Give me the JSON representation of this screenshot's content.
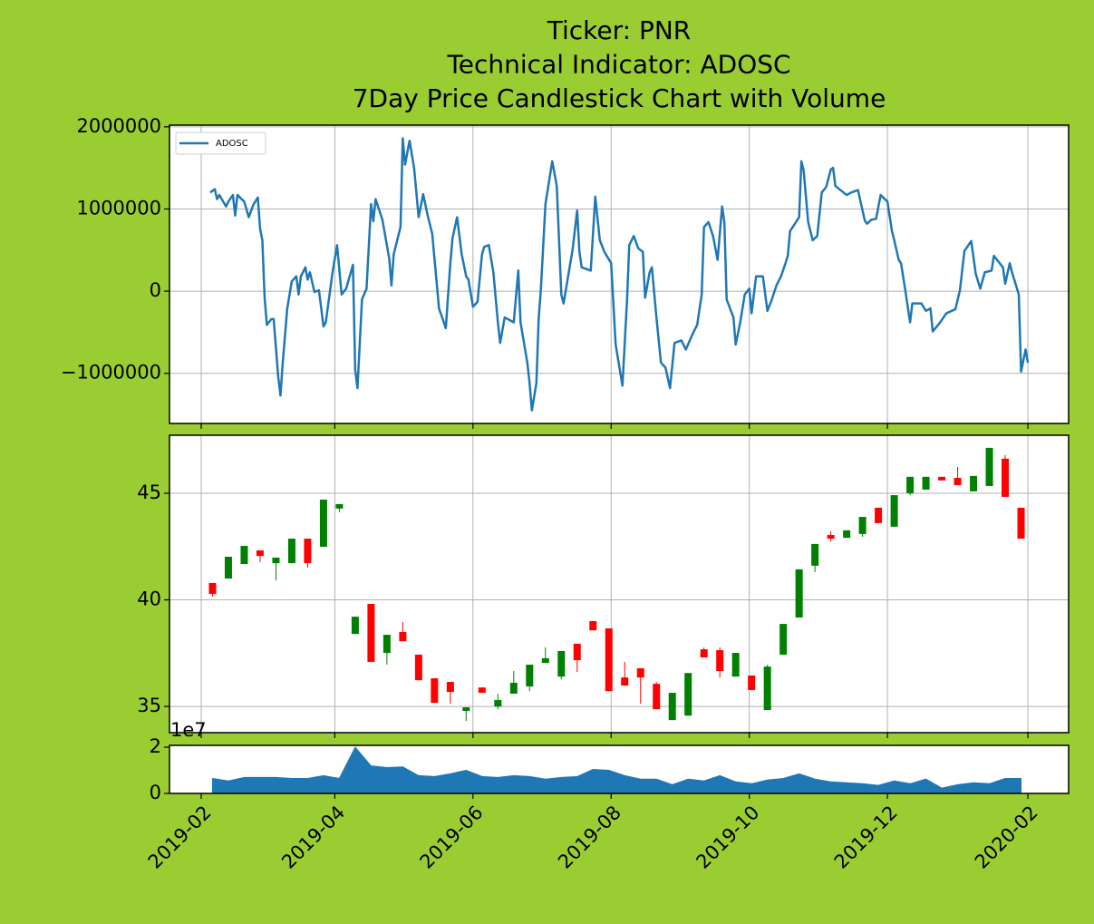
{
  "chart_data": [
    {
      "type": "line",
      "title": [
        "Ticker: PNR",
        "Technical Indicator: ADOSC",
        "7Day Price Candlestick Chart with Volume"
      ],
      "ylim": [
        -1610000,
        2020000
      ],
      "yticks": [
        {
          "value": -1000000,
          "label": "−1000000"
        },
        0,
        1000000,
        2000000
      ],
      "grid": true,
      "legend": "upper left",
      "series": [
        {
          "name": "ADOSC",
          "color": "#1f77b4",
          "x": [
            "2019-02-05",
            "2019-02-07",
            "2019-02-08",
            "2019-02-09",
            "2019-02-12",
            "2019-02-13",
            "2019-02-15",
            "2019-02-16",
            "2019-02-17",
            "2019-02-20",
            "2019-02-22",
            "2019-02-24",
            "2019-02-26",
            "2019-02-27",
            "2019-02-28",
            "2019-03-01",
            "2019-03-02",
            "2019-03-04",
            "2019-03-05",
            "2019-03-07",
            "2019-03-08",
            "2019-03-09",
            "2019-03-11",
            "2019-03-13",
            "2019-03-15",
            "2019-03-16",
            "2019-03-17",
            "2019-03-19",
            "2019-03-20",
            "2019-03-21",
            "2019-03-23",
            "2019-03-25",
            "2019-03-27",
            "2019-03-28",
            "2019-03-31",
            "2019-04-02",
            "2019-04-04",
            "2019-04-06",
            "2019-04-09",
            "2019-04-10",
            "2019-04-11",
            "2019-04-13",
            "2019-04-15",
            "2019-04-17",
            "2019-04-18",
            "2019-04-19",
            "2019-04-22",
            "2019-04-25",
            "2019-04-26",
            "2019-04-27",
            "2019-04-30",
            "2019-05-01",
            "2019-05-02",
            "2019-05-04",
            "2019-05-06",
            "2019-05-08",
            "2019-05-10",
            "2019-05-12",
            "2019-05-14",
            "2019-05-17",
            "2019-05-20",
            "2019-05-22",
            "2019-05-23",
            "2019-05-25",
            "2019-05-27",
            "2019-05-29",
            "2019-05-30",
            "2019-06-01",
            "2019-06-03",
            "2019-06-05",
            "2019-06-06",
            "2019-06-08",
            "2019-06-10",
            "2019-06-12",
            "2019-06-13",
            "2019-06-15",
            "2019-06-19",
            "2019-06-21",
            "2019-06-22",
            "2019-06-25",
            "2019-06-26",
            "2019-06-27",
            "2019-06-29",
            "2019-06-30",
            "2019-07-01",
            "2019-07-03",
            "2019-07-06",
            "2019-07-08",
            "2019-07-10",
            "2019-07-11",
            "2019-07-13",
            "2019-07-15",
            "2019-07-17",
            "2019-07-18",
            "2019-07-19",
            "2019-07-23",
            "2019-07-25",
            "2019-07-27",
            "2019-07-29",
            "2019-08-01",
            "2019-08-03",
            "2019-08-06",
            "2019-08-08",
            "2019-08-09",
            "2019-08-11",
            "2019-08-13",
            "2019-08-15",
            "2019-08-16",
            "2019-08-18",
            "2019-08-19",
            "2019-08-21",
            "2019-08-23",
            "2019-08-25",
            "2019-08-27",
            "2019-08-29",
            "2019-09-01",
            "2019-09-03",
            "2019-09-06",
            "2019-09-08",
            "2019-09-10",
            "2019-09-11",
            "2019-09-13",
            "2019-09-15",
            "2019-09-17",
            "2019-09-19",
            "2019-09-20",
            "2019-09-21",
            "2019-09-24",
            "2019-09-25",
            "2019-09-27",
            "2019-09-29",
            "2019-10-01",
            "2019-10-02",
            "2019-10-04",
            "2019-10-07",
            "2019-10-09",
            "2019-10-11",
            "2019-10-13",
            "2019-10-15",
            "2019-10-17",
            "2019-10-18",
            "2019-10-19",
            "2019-10-23",
            "2019-10-24",
            "2019-10-25",
            "2019-10-27",
            "2019-10-29",
            "2019-10-31",
            "2019-11-02",
            "2019-11-04",
            "2019-11-06",
            "2019-11-07",
            "2019-11-08",
            "2019-11-13",
            "2019-11-15",
            "2019-11-18",
            "2019-11-21",
            "2019-11-22",
            "2019-11-24",
            "2019-11-26",
            "2019-11-28",
            "2019-12-01",
            "2019-12-03",
            "2019-12-04",
            "2019-12-06",
            "2019-12-07",
            "2019-12-09",
            "2019-12-11",
            "2019-12-12",
            "2019-12-16",
            "2019-12-18",
            "2019-12-20",
            "2019-12-21",
            "2019-12-24",
            "2019-12-27",
            "2019-12-31",
            "2020-01-02",
            "2020-01-04",
            "2020-01-07",
            "2020-01-09",
            "2020-01-11",
            "2020-01-13",
            "2020-01-16",
            "2020-01-17",
            "2020-01-21",
            "2020-01-22",
            "2020-01-24",
            "2020-01-25",
            "2020-01-28",
            "2020-01-29",
            "2020-01-31",
            "2020-02-01"
          ],
          "values": [
            1200000,
            1240000,
            1120000,
            1170000,
            1030000,
            1090000,
            1170000,
            920000,
            1170000,
            1090000,
            900000,
            1050000,
            1140000,
            760000,
            620000,
            -80000,
            -410000,
            -340000,
            -340000,
            -1040000,
            -1270000,
            -870000,
            -210000,
            120000,
            180000,
            -40000,
            180000,
            290000,
            140000,
            230000,
            -10000,
            10000,
            -430000,
            -380000,
            230000,
            560000,
            -40000,
            30000,
            320000,
            -960000,
            -1180000,
            -100000,
            30000,
            1060000,
            850000,
            1120000,
            870000,
            400000,
            70000,
            450000,
            780000,
            1860000,
            1540000,
            1830000,
            1500000,
            900000,
            1180000,
            920000,
            700000,
            -210000,
            -450000,
            340000,
            650000,
            900000,
            450000,
            180000,
            140000,
            -190000,
            -130000,
            450000,
            540000,
            560000,
            230000,
            -380000,
            -630000,
            -320000,
            -380000,
            250000,
            -380000,
            -870000,
            -1120000,
            -1450000,
            -1120000,
            -340000,
            30000,
            1060000,
            1580000,
            1280000,
            -40000,
            -150000,
            180000,
            510000,
            980000,
            480000,
            290000,
            250000,
            1150000,
            620000,
            480000,
            340000,
            -650000,
            -1150000,
            -120000,
            560000,
            670000,
            520000,
            480000,
            -80000,
            230000,
            290000,
            -320000,
            -870000,
            -930000,
            -1180000,
            -630000,
            -600000,
            -710000,
            -520000,
            -410000,
            -40000,
            780000,
            840000,
            670000,
            380000,
            1030000,
            840000,
            -100000,
            -320000,
            -650000,
            -380000,
            -40000,
            30000,
            -270000,
            180000,
            180000,
            -240000,
            -100000,
            70000,
            180000,
            340000,
            430000,
            730000,
            900000,
            1580000,
            1470000,
            840000,
            620000,
            670000,
            1200000,
            1270000,
            1480000,
            1500000,
            1280000,
            1170000,
            1200000,
            1230000,
            860000,
            820000,
            870000,
            880000,
            1170000,
            1090000,
            730000,
            620000,
            380000,
            340000,
            -10000,
            -380000,
            -150000,
            -150000,
            -240000,
            -210000,
            -490000,
            -390000,
            -270000,
            -220000,
            10000,
            490000,
            610000,
            210000,
            30000,
            230000,
            250000,
            430000,
            290000,
            90000,
            340000,
            230000,
            -40000,
            -980000,
            -710000,
            -870000
          ]
        }
      ]
    },
    {
      "type": "candlestick",
      "ylim": [
        33.77,
        47.72
      ],
      "yticks": [
        35,
        40,
        45
      ],
      "grid": true,
      "up_color": "green",
      "down_color": "red",
      "x": [
        "2019-02-06",
        "2019-02-13",
        "2019-02-20",
        "2019-02-27",
        "2019-03-06",
        "2019-03-13",
        "2019-03-20",
        "2019-03-27",
        "2019-04-03",
        "2019-04-10",
        "2019-04-17",
        "2019-04-24",
        "2019-05-01",
        "2019-05-08",
        "2019-05-15",
        "2019-05-22",
        "2019-05-29",
        "2019-06-05",
        "2019-06-12",
        "2019-06-19",
        "2019-06-26",
        "2019-07-03",
        "2019-07-10",
        "2019-07-17",
        "2019-07-24",
        "2019-07-31",
        "2019-08-07",
        "2019-08-14",
        "2019-08-21",
        "2019-08-28",
        "2019-09-04",
        "2019-09-11",
        "2019-09-18",
        "2019-09-25",
        "2019-10-02",
        "2019-10-09",
        "2019-10-16",
        "2019-10-23",
        "2019-10-30",
        "2019-11-06",
        "2019-11-13",
        "2019-11-20",
        "2019-11-27",
        "2019-12-04",
        "2019-12-11",
        "2019-12-18",
        "2019-12-25",
        "2020-01-01",
        "2020-01-08",
        "2020-01-15",
        "2020-01-22",
        "2020-01-29"
      ],
      "open": [
        40.79,
        41.0,
        41.68,
        42.32,
        41.72,
        41.72,
        42.87,
        42.49,
        44.28,
        38.4,
        39.81,
        37.51,
        38.49,
        37.43,
        36.32,
        36.15,
        34.79,
        35.89,
        35.0,
        35.6,
        35.94,
        37.04,
        36.4,
        37.94,
        39.0,
        38.66,
        36.36,
        36.79,
        36.06,
        34.36,
        34.57,
        37.68,
        37.64,
        36.4,
        36.45,
        34.83,
        37.43,
        39.17,
        41.6,
        43.04,
        42.91,
        43.09,
        44.32,
        43.43,
        45.0,
        45.17,
        45.77,
        45.72,
        45.09,
        45.34,
        46.62,
        44.32
      ],
      "high": [
        40.79,
        42.02,
        42.53,
        42.32,
        41.98,
        42.87,
        42.87,
        44.7,
        44.49,
        39.21,
        39.81,
        38.36,
        38.96,
        37.43,
        36.32,
        36.15,
        34.96,
        35.89,
        35.6,
        36.66,
        36.96,
        37.77,
        37.6,
        37.94,
        39.0,
        38.66,
        37.09,
        36.79,
        36.15,
        35.64,
        36.57,
        37.77,
        37.77,
        37.51,
        36.45,
        36.96,
        38.87,
        41.43,
        42.62,
        43.21,
        43.26,
        43.89,
        44.32,
        44.91,
        45.77,
        45.77,
        45.77,
        46.23,
        45.81,
        47.13,
        46.79,
        44.32
      ],
      "low": [
        40.15,
        41.0,
        41.68,
        41.77,
        40.91,
        41.72,
        41.51,
        42.49,
        44.11,
        38.4,
        37.09,
        36.96,
        38.06,
        36.23,
        35.17,
        35.13,
        34.32,
        35.64,
        34.87,
        35.6,
        35.72,
        37.04,
        36.28,
        36.62,
        38.57,
        35.72,
        35.98,
        35.13,
        34.87,
        34.36,
        34.57,
        37.3,
        36.36,
        36.4,
        35.77,
        34.83,
        37.43,
        39.17,
        41.3,
        42.74,
        42.91,
        42.96,
        43.6,
        43.43,
        44.91,
        45.17,
        45.6,
        45.38,
        45.09,
        45.34,
        44.83,
        42.87
      ],
      "close": [
        40.28,
        42.02,
        42.53,
        42.06,
        41.98,
        42.87,
        41.72,
        44.7,
        44.49,
        39.21,
        37.09,
        38.36,
        38.06,
        36.23,
        35.17,
        35.68,
        34.96,
        35.64,
        35.3,
        36.11,
        36.96,
        37.26,
        37.6,
        37.17,
        38.57,
        35.72,
        35.98,
        36.36,
        34.87,
        35.64,
        36.57,
        37.3,
        36.66,
        37.51,
        35.77,
        36.87,
        38.87,
        41.43,
        42.62,
        42.87,
        43.26,
        43.89,
        43.6,
        44.91,
        45.77,
        45.77,
        45.6,
        45.38,
        45.81,
        47.13,
        44.83,
        42.87
      ]
    },
    {
      "type": "area",
      "ylim": [
        0,
        20800000
      ],
      "yticks": [
        0,
        {
          "value": 20000000,
          "label": "2"
        }
      ],
      "offset_text": "1e7",
      "grid": false,
      "color": "#1f77b4",
      "xlim": [
        "2019-01-18",
        "2020-02-19"
      ],
      "xticks": [
        "2019-02",
        "2019-04",
        "2019-06",
        "2019-08",
        "2019-10",
        "2019-12",
        "2020-02"
      ],
      "values": [
        6500000,
        5400000,
        6900000,
        6900000,
        6900000,
        6500000,
        6500000,
        7700000,
        6500000,
        20000000,
        11900000,
        11200000,
        11500000,
        7700000,
        7300000,
        8500000,
        10000000,
        7300000,
        6900000,
        7700000,
        7300000,
        6200000,
        6900000,
        7300000,
        10400000,
        10000000,
        7700000,
        6200000,
        6200000,
        3800000,
        6200000,
        5400000,
        7700000,
        5000000,
        4200000,
        5800000,
        6500000,
        8500000,
        6200000,
        5000000,
        4600000,
        4200000,
        3500000,
        5400000,
        4200000,
        6200000,
        2300000,
        3800000,
        4600000,
        4200000,
        6500000,
        6500000
      ]
    }
  ]
}
